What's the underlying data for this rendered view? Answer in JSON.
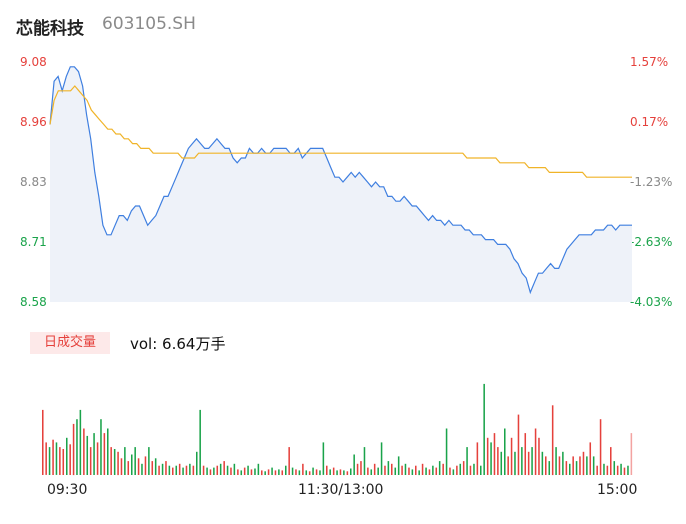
{
  "header": {
    "name": "芯能科技",
    "code": "603105.SH"
  },
  "colors": {
    "up": "#e5413c",
    "down": "#1aa34a",
    "flat": "#888888",
    "price_line": "#3f7fe0",
    "avg_line": "#f0b429"
  },
  "volume": {
    "badge": "日成交量",
    "text": "vol: 6.64万手"
  },
  "chart_data": {
    "type": "line",
    "title": "",
    "y_ticks_price": [
      "9.08",
      "8.96",
      "8.83",
      "8.71",
      "8.58"
    ],
    "y_ticks_pct": [
      "1.57%",
      "0.17%",
      "-1.23%",
      "-2.63%",
      "-4.03%"
    ],
    "x_ticks": [
      "09:30",
      "11:30/13:00",
      "15:00"
    ],
    "ylim": [
      8.58,
      9.08
    ],
    "series": [
      {
        "values": [
          8.95,
          9.04,
          9.05,
          9.02,
          9.05,
          9.07,
          9.07,
          9.06,
          9.03,
          8.97,
          8.92,
          8.85,
          8.8,
          8.74,
          8.72,
          8.72,
          8.74,
          8.76,
          8.76,
          8.75,
          8.77,
          8.78,
          8.78,
          8.76,
          8.74,
          8.75,
          8.76,
          8.78,
          8.8,
          8.8,
          8.82,
          8.84,
          8.86,
          8.88,
          8.9,
          8.91,
          8.92,
          8.91,
          8.9,
          8.9,
          8.91,
          8.92,
          8.91,
          8.9,
          8.9,
          8.88,
          8.87,
          8.88,
          8.88,
          8.9,
          8.89,
          8.89,
          8.9,
          8.89,
          8.89,
          8.9,
          8.9,
          8.9,
          8.9,
          8.89,
          8.89,
          8.9,
          8.88,
          8.89,
          8.9,
          8.9,
          8.9,
          8.9,
          8.88,
          8.86,
          8.84,
          8.84,
          8.83,
          8.84,
          8.85,
          8.84,
          8.85,
          8.84,
          8.83,
          8.82,
          8.83,
          8.82,
          8.82,
          8.8,
          8.8,
          8.79,
          8.79,
          8.8,
          8.79,
          8.78,
          8.78,
          8.77,
          8.76,
          8.75,
          8.76,
          8.75,
          8.75,
          8.74,
          8.75,
          8.74,
          8.74,
          8.74,
          8.73,
          8.73,
          8.72,
          8.72,
          8.72,
          8.71,
          8.71,
          8.71,
          8.7,
          8.7,
          8.7,
          8.69,
          8.67,
          8.66,
          8.64,
          8.63,
          8.6,
          8.62,
          8.64,
          8.64,
          8.65,
          8.66,
          8.65,
          8.65,
          8.67,
          8.69,
          8.7,
          8.71,
          8.72,
          8.72,
          8.72,
          8.72,
          8.73,
          8.73,
          8.73,
          8.74,
          8.74,
          8.73,
          8.74,
          8.74,
          8.74,
          8.74
        ]
      },
      {
        "values": [
          8.95,
          9,
          9.02,
          9.02,
          9.02,
          9.02,
          9.03,
          9.02,
          9.01,
          9,
          8.98,
          8.97,
          8.96,
          8.95,
          8.94,
          8.94,
          8.93,
          8.93,
          8.92,
          8.92,
          8.91,
          8.91,
          8.9,
          8.9,
          8.9,
          8.89,
          8.89,
          8.89,
          8.89,
          8.89,
          8.89,
          8.89,
          8.88,
          8.88,
          8.88,
          8.88,
          8.89,
          8.89,
          8.89,
          8.89,
          8.89,
          8.89,
          8.89,
          8.89,
          8.89,
          8.89,
          8.89,
          8.89,
          8.89,
          8.89,
          8.89,
          8.89,
          8.89,
          8.89,
          8.89,
          8.89,
          8.89,
          8.89,
          8.89,
          8.89,
          8.89,
          8.89,
          8.89,
          8.89,
          8.89,
          8.89,
          8.89,
          8.89,
          8.89,
          8.89,
          8.89,
          8.89,
          8.89,
          8.89,
          8.89,
          8.89,
          8.89,
          8.89,
          8.89,
          8.89,
          8.89,
          8.89,
          8.89,
          8.89,
          8.89,
          8.89,
          8.89,
          8.89,
          8.89,
          8.89,
          8.89,
          8.89,
          8.89,
          8.89,
          8.89,
          8.89,
          8.89,
          8.89,
          8.89,
          8.89,
          8.89,
          8.88,
          8.88,
          8.88,
          8.88,
          8.88,
          8.88,
          8.88,
          8.88,
          8.87,
          8.87,
          8.87,
          8.87,
          8.87,
          8.87,
          8.87,
          8.86,
          8.86,
          8.86,
          8.86,
          8.86,
          8.85,
          8.85,
          8.85,
          8.85,
          8.85,
          8.85,
          8.85,
          8.85,
          8.85,
          8.84,
          8.84,
          8.84,
          8.84,
          8.84,
          8.84,
          8.84,
          8.84,
          8.84,
          8.84,
          8.84,
          8.84
        ]
      }
    ],
    "volume_bars": [
      {
        "h": 0.7,
        "c": "r"
      },
      {
        "h": 0.35,
        "c": "r"
      },
      {
        "h": 0.3,
        "c": "g"
      },
      {
        "h": 0.38,
        "c": "r"
      },
      {
        "h": 0.35,
        "c": "g"
      },
      {
        "h": 0.3,
        "c": "r"
      },
      {
        "h": 0.28,
        "c": "r"
      },
      {
        "h": 0.4,
        "c": "g"
      },
      {
        "h": 0.33,
        "c": "r"
      },
      {
        "h": 0.55,
        "c": "r"
      },
      {
        "h": 0.6,
        "c": "g"
      },
      {
        "h": 0.7,
        "c": "g"
      },
      {
        "h": 0.5,
        "c": "r"
      },
      {
        "h": 0.42,
        "c": "g"
      },
      {
        "h": 0.3,
        "c": "r"
      },
      {
        "h": 0.45,
        "c": "g"
      },
      {
        "h": 0.35,
        "c": "r"
      },
      {
        "h": 0.6,
        "c": "g"
      },
      {
        "h": 0.45,
        "c": "r"
      },
      {
        "h": 0.5,
        "c": "g"
      },
      {
        "h": 0.3,
        "c": "r"
      },
      {
        "h": 0.28,
        "c": "g"
      },
      {
        "h": 0.25,
        "c": "r"
      },
      {
        "h": 0.18,
        "c": "r"
      },
      {
        "h": 0.3,
        "c": "g"
      },
      {
        "h": 0.15,
        "c": "r"
      },
      {
        "h": 0.22,
        "c": "g"
      },
      {
        "h": 0.3,
        "c": "g"
      },
      {
        "h": 0.18,
        "c": "r"
      },
      {
        "h": 0.12,
        "c": "g"
      },
      {
        "h": 0.2,
        "c": "r"
      },
      {
        "h": 0.3,
        "c": "g"
      },
      {
        "h": 0.15,
        "c": "r"
      },
      {
        "h": 0.18,
        "c": "g"
      },
      {
        "h": 0.1,
        "c": "r"
      },
      {
        "h": 0.12,
        "c": "g"
      },
      {
        "h": 0.15,
        "c": "r"
      },
      {
        "h": 0.1,
        "c": "g"
      },
      {
        "h": 0.08,
        "c": "r"
      },
      {
        "h": 0.1,
        "c": "g"
      },
      {
        "h": 0.12,
        "c": "r"
      },
      {
        "h": 0.08,
        "c": "g"
      },
      {
        "h": 0.1,
        "c": "r"
      },
      {
        "h": 0.12,
        "c": "g"
      },
      {
        "h": 0.1,
        "c": "r"
      },
      {
        "h": 0.25,
        "c": "g"
      },
      {
        "h": 0.7,
        "c": "g"
      },
      {
        "h": 0.1,
        "c": "r"
      },
      {
        "h": 0.08,
        "c": "g"
      },
      {
        "h": 0.06,
        "c": "r"
      },
      {
        "h": 0.08,
        "c": "g"
      },
      {
        "h": 0.1,
        "c": "r"
      },
      {
        "h": 0.12,
        "c": "g"
      },
      {
        "h": 0.15,
        "c": "r"
      },
      {
        "h": 0.1,
        "c": "g"
      },
      {
        "h": 0.08,
        "c": "r"
      },
      {
        "h": 0.12,
        "c": "g"
      },
      {
        "h": 0.06,
        "c": "r"
      },
      {
        "h": 0.05,
        "c": "g"
      },
      {
        "h": 0.08,
        "c": "r"
      },
      {
        "h": 0.1,
        "c": "g"
      },
      {
        "h": 0.06,
        "c": "r"
      },
      {
        "h": 0.07,
        "c": "g"
      },
      {
        "h": 0.12,
        "c": "g"
      },
      {
        "h": 0.05,
        "c": "r"
      },
      {
        "h": 0.04,
        "c": "g"
      },
      {
        "h": 0.06,
        "c": "r"
      },
      {
        "h": 0.08,
        "c": "g"
      },
      {
        "h": 0.05,
        "c": "r"
      },
      {
        "h": 0.06,
        "c": "g"
      },
      {
        "h": 0.05,
        "c": "r"
      },
      {
        "h": 0.1,
        "c": "g"
      },
      {
        "h": 0.3,
        "c": "r"
      },
      {
        "h": 0.08,
        "c": "g"
      },
      {
        "h": 0.06,
        "c": "r"
      },
      {
        "h": 0.05,
        "c": "g"
      },
      {
        "h": 0.12,
        "c": "r"
      },
      {
        "h": 0.05,
        "c": "g"
      },
      {
        "h": 0.04,
        "c": "r"
      },
      {
        "h": 0.08,
        "c": "g"
      },
      {
        "h": 0.06,
        "c": "r"
      },
      {
        "h": 0.05,
        "c": "g"
      },
      {
        "h": 0.35,
        "c": "g"
      },
      {
        "h": 0.1,
        "c": "r"
      },
      {
        "h": 0.06,
        "c": "g"
      },
      {
        "h": 0.08,
        "c": "r"
      },
      {
        "h": 0.05,
        "c": "g"
      },
      {
        "h": 0.06,
        "c": "r"
      },
      {
        "h": 0.05,
        "c": "g"
      },
      {
        "h": 0.04,
        "c": "r"
      },
      {
        "h": 0.07,
        "c": "g"
      },
      {
        "h": 0.22,
        "c": "g"
      },
      {
        "h": 0.12,
        "c": "r"
      },
      {
        "h": 0.15,
        "c": "r"
      },
      {
        "h": 0.3,
        "c": "g"
      },
      {
        "h": 0.08,
        "c": "r"
      },
      {
        "h": 0.06,
        "c": "g"
      },
      {
        "h": 0.12,
        "c": "r"
      },
      {
        "h": 0.08,
        "c": "g"
      },
      {
        "h": 0.35,
        "c": "g"
      },
      {
        "h": 0.1,
        "c": "r"
      },
      {
        "h": 0.15,
        "c": "g"
      },
      {
        "h": 0.12,
        "c": "r"
      },
      {
        "h": 0.08,
        "c": "g"
      },
      {
        "h": 0.2,
        "c": "g"
      },
      {
        "h": 0.1,
        "c": "r"
      },
      {
        "h": 0.12,
        "c": "g"
      },
      {
        "h": 0.08,
        "c": "r"
      },
      {
        "h": 0.06,
        "c": "g"
      },
      {
        "h": 0.1,
        "c": "r"
      },
      {
        "h": 0.05,
        "c": "g"
      },
      {
        "h": 0.12,
        "c": "r"
      },
      {
        "h": 0.08,
        "c": "g"
      },
      {
        "h": 0.06,
        "c": "r"
      },
      {
        "h": 0.1,
        "c": "g"
      },
      {
        "h": 0.08,
        "c": "r"
      },
      {
        "h": 0.15,
        "c": "g"
      },
      {
        "h": 0.12,
        "c": "r"
      },
      {
        "h": 0.5,
        "c": "g"
      },
      {
        "h": 0.08,
        "c": "r"
      },
      {
        "h": 0.06,
        "c": "g"
      },
      {
        "h": 0.1,
        "c": "r"
      },
      {
        "h": 0.12,
        "c": "g"
      },
      {
        "h": 0.15,
        "c": "r"
      },
      {
        "h": 0.3,
        "c": "g"
      },
      {
        "h": 0.1,
        "c": "r"
      },
      {
        "h": 0.12,
        "c": "g"
      },
      {
        "h": 0.35,
        "c": "r"
      },
      {
        "h": 0.1,
        "c": "g"
      },
      {
        "h": 0.98,
        "c": "g"
      },
      {
        "h": 0.4,
        "c": "r"
      },
      {
        "h": 0.35,
        "c": "g"
      },
      {
        "h": 0.45,
        "c": "r"
      },
      {
        "h": 0.3,
        "c": "r"
      },
      {
        "h": 0.25,
        "c": "g"
      },
      {
        "h": 0.5,
        "c": "g"
      },
      {
        "h": 0.2,
        "c": "r"
      },
      {
        "h": 0.4,
        "c": "r"
      },
      {
        "h": 0.25,
        "c": "g"
      },
      {
        "h": 0.65,
        "c": "r"
      },
      {
        "h": 0.3,
        "c": "g"
      },
      {
        "h": 0.45,
        "c": "r"
      },
      {
        "h": 0.25,
        "c": "r"
      },
      {
        "h": 0.3,
        "c": "g"
      },
      {
        "h": 0.5,
        "c": "r"
      },
      {
        "h": 0.4,
        "c": "r"
      },
      {
        "h": 0.25,
        "c": "g"
      },
      {
        "h": 0.2,
        "c": "r"
      },
      {
        "h": 0.15,
        "c": "g"
      },
      {
        "h": 0.75,
        "c": "r"
      },
      {
        "h": 0.3,
        "c": "g"
      },
      {
        "h": 0.2,
        "c": "r"
      },
      {
        "h": 0.25,
        "c": "g"
      },
      {
        "h": 0.15,
        "c": "r"
      },
      {
        "h": 0.12,
        "c": "g"
      },
      {
        "h": 0.2,
        "c": "r"
      },
      {
        "h": 0.15,
        "c": "g"
      },
      {
        "h": 0.2,
        "c": "r"
      },
      {
        "h": 0.25,
        "c": "r"
      },
      {
        "h": 0.2,
        "c": "g"
      },
      {
        "h": 0.35,
        "c": "r"
      },
      {
        "h": 0.2,
        "c": "g"
      },
      {
        "h": 0.1,
        "c": "r"
      },
      {
        "h": 0.6,
        "c": "r"
      },
      {
        "h": 0.12,
        "c": "g"
      },
      {
        "h": 0.1,
        "c": "r"
      },
      {
        "h": 0.3,
        "c": "r"
      },
      {
        "h": 0.15,
        "c": "g"
      },
      {
        "h": 0.1,
        "c": "r"
      },
      {
        "h": 0.12,
        "c": "g"
      },
      {
        "h": 0.08,
        "c": "r"
      },
      {
        "h": 0.1,
        "c": "g"
      },
      {
        "h": 0.45,
        "c": "f"
      }
    ]
  }
}
